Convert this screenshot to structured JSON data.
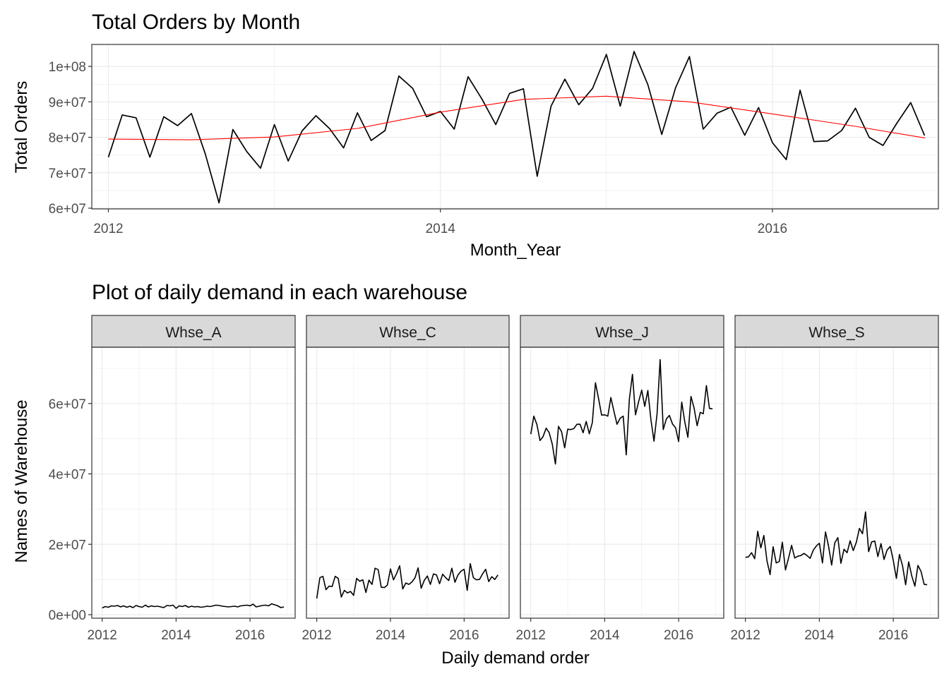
{
  "chart_data": [
    {
      "type": "line",
      "title": "Total Orders by Month",
      "xlabel": "Month_Year",
      "ylabel": "Total Orders",
      "x_ticks": [
        "2012",
        "2014",
        "2016"
      ],
      "y_ticks": [
        "6e+07",
        "7e+07",
        "8e+07",
        "9e+07",
        "1e+08"
      ],
      "xlim": [
        2011.9,
        2017.0
      ],
      "ylim": [
        59800000,
        106200000
      ],
      "grid": true,
      "legend": "none",
      "colors": {
        "series": "#000000",
        "smooth": "#ff0000",
        "grid": "#ebebeb",
        "border": "#333333"
      },
      "series": [
        {
          "x": [
            2012.0,
            2012.0833,
            2012.1667,
            2012.25,
            2012.3333,
            2012.4167,
            2012.5,
            2012.5833,
            2012.6667,
            2012.75,
            2012.8333,
            2012.9167,
            2013.0,
            2013.0833,
            2013.1667,
            2013.25,
            2013.3333,
            2013.4167,
            2013.5,
            2013.5833,
            2013.6667,
            2013.75,
            2013.8333,
            2013.9167,
            2014.0,
            2014.0833,
            2014.1667,
            2014.25,
            2014.3333,
            2014.4167,
            2014.5,
            2014.5833,
            2014.6667,
            2014.75,
            2014.8333,
            2014.9167,
            2015.0,
            2015.0833,
            2015.1667,
            2015.25,
            2015.3333,
            2015.4167,
            2015.5,
            2015.5833,
            2015.6667,
            2015.75,
            2015.8333,
            2015.9167,
            2016.0,
            2016.0833,
            2016.1667,
            2016.25,
            2016.3333,
            2016.4167,
            2016.5,
            2016.5833,
            2016.6667,
            2016.75,
            2016.8333,
            2016.9167
          ],
          "values": [
            74400000,
            86300000,
            85500000,
            74400000,
            85800000,
            83300000,
            86700000,
            75400000,
            61500000,
            82200000,
            76000000,
            71300000,
            83600000,
            73300000,
            81800000,
            86100000,
            82400000,
            77000000,
            86900000,
            79100000,
            81900000,
            97300000,
            93800000,
            85800000,
            87300000,
            82300000,
            97100000,
            90800000,
            83600000,
            92400000,
            93700000,
            69000000,
            88800000,
            96400000,
            89200000,
            93800000,
            103400000,
            88800000,
            104200000,
            94800000,
            80800000,
            94000000,
            102800000,
            82300000,
            86800000,
            88500000,
            80600000,
            88400000,
            78500000,
            73700000,
            93300000,
            78800000,
            79000000,
            81900000,
            88200000,
            80000000,
            77700000,
            84000000,
            89800000,
            80500000
          ]
        },
        {
          "name": "smooth",
          "x": [
            2012.0,
            2012.5,
            2013.0,
            2013.5,
            2014.0,
            2014.5,
            2015.0,
            2015.5,
            2016.0,
            2016.5,
            2016.92
          ],
          "values": [
            79500000,
            79300000,
            80100000,
            82500000,
            87100000,
            90700000,
            91600000,
            90000000,
            86600000,
            83100000,
            79800000
          ]
        }
      ]
    },
    {
      "type": "line",
      "title": "Plot of daily demand in each warehouse",
      "xlabel": "Daily demand order",
      "ylabel": "Names of Warehouse",
      "x_ticks": [
        "2012",
        "2014",
        "2016"
      ],
      "y_ticks": [
        "0e+00",
        "2e+07",
        "4e+07",
        "6e+07"
      ],
      "xlim": [
        2011.72,
        2017.22
      ],
      "ylim": [
        -1000000,
        76000000
      ],
      "grid": true,
      "legend": "none",
      "colors": {
        "series": "#000000",
        "strip_bg": "#d9d9d9",
        "grid": "#ebebeb",
        "border": "#333333"
      },
      "panels": [
        {
          "name": "Whse_A",
          "x": [
            2012.0,
            2012.0833,
            2012.1667,
            2012.25,
            2012.3333,
            2012.4167,
            2012.5,
            2012.5833,
            2012.6667,
            2012.75,
            2012.8333,
            2012.9167,
            2013.0,
            2013.0833,
            2013.1667,
            2013.25,
            2013.3333,
            2013.4167,
            2013.5,
            2013.5833,
            2013.6667,
            2013.75,
            2013.8333,
            2013.9167,
            2014.0,
            2014.0833,
            2014.1667,
            2014.25,
            2014.3333,
            2014.4167,
            2014.5,
            2014.5833,
            2014.6667,
            2014.75,
            2014.8333,
            2014.9167,
            2015.0,
            2015.0833,
            2015.1667,
            2015.25,
            2015.3333,
            2015.4167,
            2015.5,
            2015.5833,
            2015.6667,
            2015.75,
            2015.8333,
            2015.9167,
            2016.0,
            2016.0833,
            2016.1667,
            2016.25,
            2016.3333,
            2016.4167,
            2016.5,
            2016.5833,
            2016.6667,
            2016.75,
            2016.8333,
            2016.9167
          ],
          "values": [
            1900000,
            2300000,
            2100000,
            2500000,
            2400000,
            2600000,
            2200000,
            2500000,
            2100000,
            2400000,
            2000000,
            2600000,
            2300000,
            2100000,
            2700000,
            2200000,
            2500000,
            2300000,
            2400000,
            2200000,
            2000000,
            2600000,
            2500000,
            2700000,
            1800000,
            2500000,
            2300000,
            2600000,
            2100000,
            2400000,
            2200000,
            2300000,
            2100000,
            2200000,
            2400000,
            2300000,
            2500000,
            2700000,
            2600000,
            2400000,
            2300000,
            2200000,
            2300000,
            2400000,
            2200000,
            2500000,
            2600000,
            2700000,
            2500000,
            3000000,
            2200000,
            2400000,
            2600000,
            2700000,
            2500000,
            3100000,
            2800000,
            2500000,
            2000000,
            2200000
          ]
        },
        {
          "name": "Whse_C",
          "x": [
            2012.0,
            2012.0833,
            2012.1667,
            2012.25,
            2012.3333,
            2012.4167,
            2012.5,
            2012.5833,
            2012.6667,
            2012.75,
            2012.8333,
            2012.9167,
            2013.0,
            2013.0833,
            2013.1667,
            2013.25,
            2013.3333,
            2013.4167,
            2013.5,
            2013.5833,
            2013.6667,
            2013.75,
            2013.8333,
            2013.9167,
            2014.0,
            2014.0833,
            2014.1667,
            2014.25,
            2014.3333,
            2014.4167,
            2014.5,
            2014.5833,
            2014.6667,
            2014.75,
            2014.8333,
            2014.9167,
            2015.0,
            2015.0833,
            2015.1667,
            2015.25,
            2015.3333,
            2015.4167,
            2015.5,
            2015.5833,
            2015.6667,
            2015.75,
            2015.8333,
            2015.9167,
            2016.0,
            2016.0833,
            2016.1667,
            2016.25,
            2016.3333,
            2016.4167,
            2016.5,
            2016.5833,
            2016.6667,
            2016.75,
            2016.8333,
            2016.9167
          ],
          "values": [
            4600000,
            10500000,
            10900000,
            7100000,
            8100000,
            8000000,
            10900000,
            10300000,
            5000000,
            6900000,
            6200000,
            6600000,
            5500000,
            10300000,
            9500000,
            9900000,
            6300000,
            9800000,
            8600000,
            13200000,
            12800000,
            7800000,
            7700000,
            8400000,
            13000000,
            9900000,
            11700000,
            13900000,
            7300000,
            9000000,
            8600000,
            9300000,
            10500000,
            13300000,
            7500000,
            9700000,
            11000000,
            8600000,
            11600000,
            11300000,
            8800000,
            11500000,
            10500000,
            9700000,
            13200000,
            9200000,
            11300000,
            12400000,
            12900000,
            6900000,
            14500000,
            10500000,
            9900000,
            10000000,
            11600000,
            12900000,
            9400000,
            10800000,
            10000000,
            11300000
          ]
        },
        {
          "name": "Whse_J",
          "x": [
            2012.0,
            2012.0833,
            2012.1667,
            2012.25,
            2012.3333,
            2012.4167,
            2012.5,
            2012.5833,
            2012.6667,
            2012.75,
            2012.8333,
            2012.9167,
            2013.0,
            2013.0833,
            2013.1667,
            2013.25,
            2013.3333,
            2013.4167,
            2013.5,
            2013.5833,
            2013.6667,
            2013.75,
            2013.8333,
            2013.9167,
            2014.0,
            2014.0833,
            2014.1667,
            2014.25,
            2014.3333,
            2014.4167,
            2014.5,
            2014.5833,
            2014.6667,
            2014.75,
            2014.8333,
            2014.9167,
            2015.0,
            2015.0833,
            2015.1667,
            2015.25,
            2015.3333,
            2015.4167,
            2015.5,
            2015.5833,
            2015.6667,
            2015.75,
            2015.8333,
            2015.9167,
            2016.0,
            2016.0833,
            2016.1667,
            2016.25,
            2016.3333,
            2016.4167,
            2016.5,
            2016.5833,
            2016.6667,
            2016.75,
            2016.8333,
            2016.9167
          ],
          "values": [
            51300000,
            56400000,
            54000000,
            49500000,
            50600000,
            53000000,
            51700000,
            48400000,
            42800000,
            53500000,
            52000000,
            47400000,
            52700000,
            52600000,
            52900000,
            54100000,
            54100000,
            51700000,
            54900000,
            51400000,
            54600000,
            65900000,
            61400000,
            56700000,
            56800000,
            56400000,
            61700000,
            57800000,
            54100000,
            55800000,
            56400000,
            45400000,
            61200000,
            68300000,
            56800000,
            60500000,
            63800000,
            59200000,
            63700000,
            55500000,
            49300000,
            57200000,
            72500000,
            52600000,
            55600000,
            56600000,
            54200000,
            53100000,
            49200000,
            60400000,
            54800000,
            50400000,
            62000000,
            58800000,
            53700000,
            57500000,
            57100000,
            65100000,
            58600000,
            58500000
          ]
        },
        {
          "name": "Whse_S",
          "x": [
            2012.0,
            2012.0833,
            2012.1667,
            2012.25,
            2012.3333,
            2012.4167,
            2012.5,
            2012.5833,
            2012.6667,
            2012.75,
            2012.8333,
            2012.9167,
            2013.0,
            2013.0833,
            2013.1667,
            2013.25,
            2013.3333,
            2013.4167,
            2013.5,
            2013.5833,
            2013.6667,
            2013.75,
            2013.8333,
            2013.9167,
            2014.0,
            2014.0833,
            2014.1667,
            2014.25,
            2014.3333,
            2014.4167,
            2014.5,
            2014.5833,
            2014.6667,
            2014.75,
            2014.8333,
            2014.9167,
            2015.0,
            2015.0833,
            2015.1667,
            2015.25,
            2015.3333,
            2015.4167,
            2015.5,
            2015.5833,
            2015.6667,
            2015.75,
            2015.8333,
            2015.9167,
            2016.0,
            2016.0833,
            2016.1667,
            2016.25,
            2016.3333,
            2016.4167,
            2016.5,
            2016.5833,
            2016.6667,
            2016.75,
            2016.8333,
            2016.9167
          ],
          "values": [
            16300000,
            16400000,
            17600000,
            15900000,
            23700000,
            19000000,
            22500000,
            15300000,
            11400000,
            19300000,
            14700000,
            15100000,
            20600000,
            12700000,
            16100000,
            19700000,
            16100000,
            16600000,
            16800000,
            17400000,
            16800000,
            16000000,
            18300000,
            19500000,
            20300000,
            14700000,
            23500000,
            19400000,
            14100000,
            20400000,
            21900000,
            14600000,
            18600000,
            17600000,
            21000000,
            18200000,
            20600000,
            24500000,
            23000000,
            29200000,
            17900000,
            20700000,
            20900000,
            16500000,
            20200000,
            15700000,
            18400000,
            19400000,
            15400000,
            10300000,
            17100000,
            13900000,
            8500000,
            15000000,
            11000000,
            8100000,
            14000000,
            12300000,
            8600000,
            8500000
          ]
        }
      ]
    }
  ]
}
